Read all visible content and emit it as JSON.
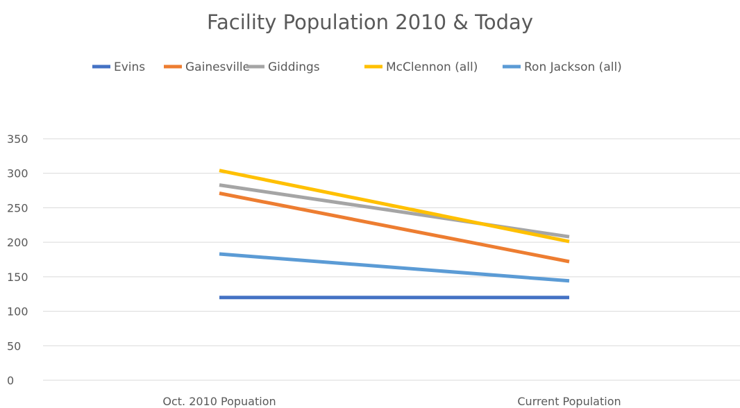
{
  "chart_data": {
    "type": "line",
    "title": "Facility Population 2010 & Today",
    "categories": [
      "Oct. 2010 Popuation",
      "Current Population"
    ],
    "series": [
      {
        "name": "Evins",
        "values": [
          120,
          120
        ],
        "color": "#4472C4"
      },
      {
        "name": "Gainesville",
        "values": [
          271,
          172
        ],
        "color": "#ED7D31"
      },
      {
        "name": "Giddings",
        "values": [
          283,
          208
        ],
        "color": "#A5A5A5"
      },
      {
        "name": "McClennon (all)",
        "values": [
          304,
          201
        ],
        "color": "#FFC000"
      },
      {
        "name": "Ron Jackson (all)",
        "values": [
          183,
          144
        ],
        "color": "#5B9BD5"
      }
    ],
    "ylim": [
      0,
      350
    ],
    "yticks": [
      0,
      50,
      100,
      150,
      200,
      250,
      300,
      350
    ],
    "grid": true,
    "legend_position": "top",
    "gridline_color": "#D9D9D9"
  }
}
